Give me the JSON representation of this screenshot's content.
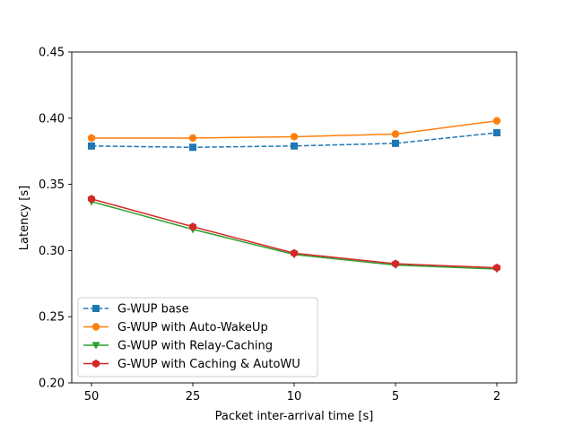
{
  "chart_data": {
    "type": "line",
    "title": "",
    "xlabel": "Packet inter-arrival time [s]",
    "ylabel": "Latency [s]",
    "categories": [
      "50",
      "25",
      "10",
      "5",
      "2"
    ],
    "ylim": [
      0.2,
      0.45
    ],
    "yticks": [
      "0.20",
      "0.25",
      "0.30",
      "0.35",
      "0.40",
      "0.45"
    ],
    "grid": false,
    "legend_position": "lower-left",
    "series": [
      {
        "name": "G-WUP base",
        "values": [
          0.379,
          0.378,
          0.379,
          0.381,
          0.389
        ],
        "color": "#1f77b4",
        "marker": "square",
        "line_style": "dashed"
      },
      {
        "name": "G-WUP with Auto-WakeUp",
        "values": [
          0.385,
          0.385,
          0.386,
          0.388,
          0.398
        ],
        "color": "#ff7f0e",
        "marker": "circle",
        "line_style": "solid"
      },
      {
        "name": "G-WUP with Relay-Caching",
        "values": [
          0.337,
          0.316,
          0.297,
          0.289,
          0.286
        ],
        "color": "#2ca02c",
        "marker": "triangle-down",
        "line_style": "solid"
      },
      {
        "name": "G-WUP with Caching & AutoWU",
        "values": [
          0.339,
          0.318,
          0.298,
          0.29,
          0.287
        ],
        "color": "#d62728",
        "marker": "hexagon",
        "line_style": "solid"
      }
    ]
  }
}
